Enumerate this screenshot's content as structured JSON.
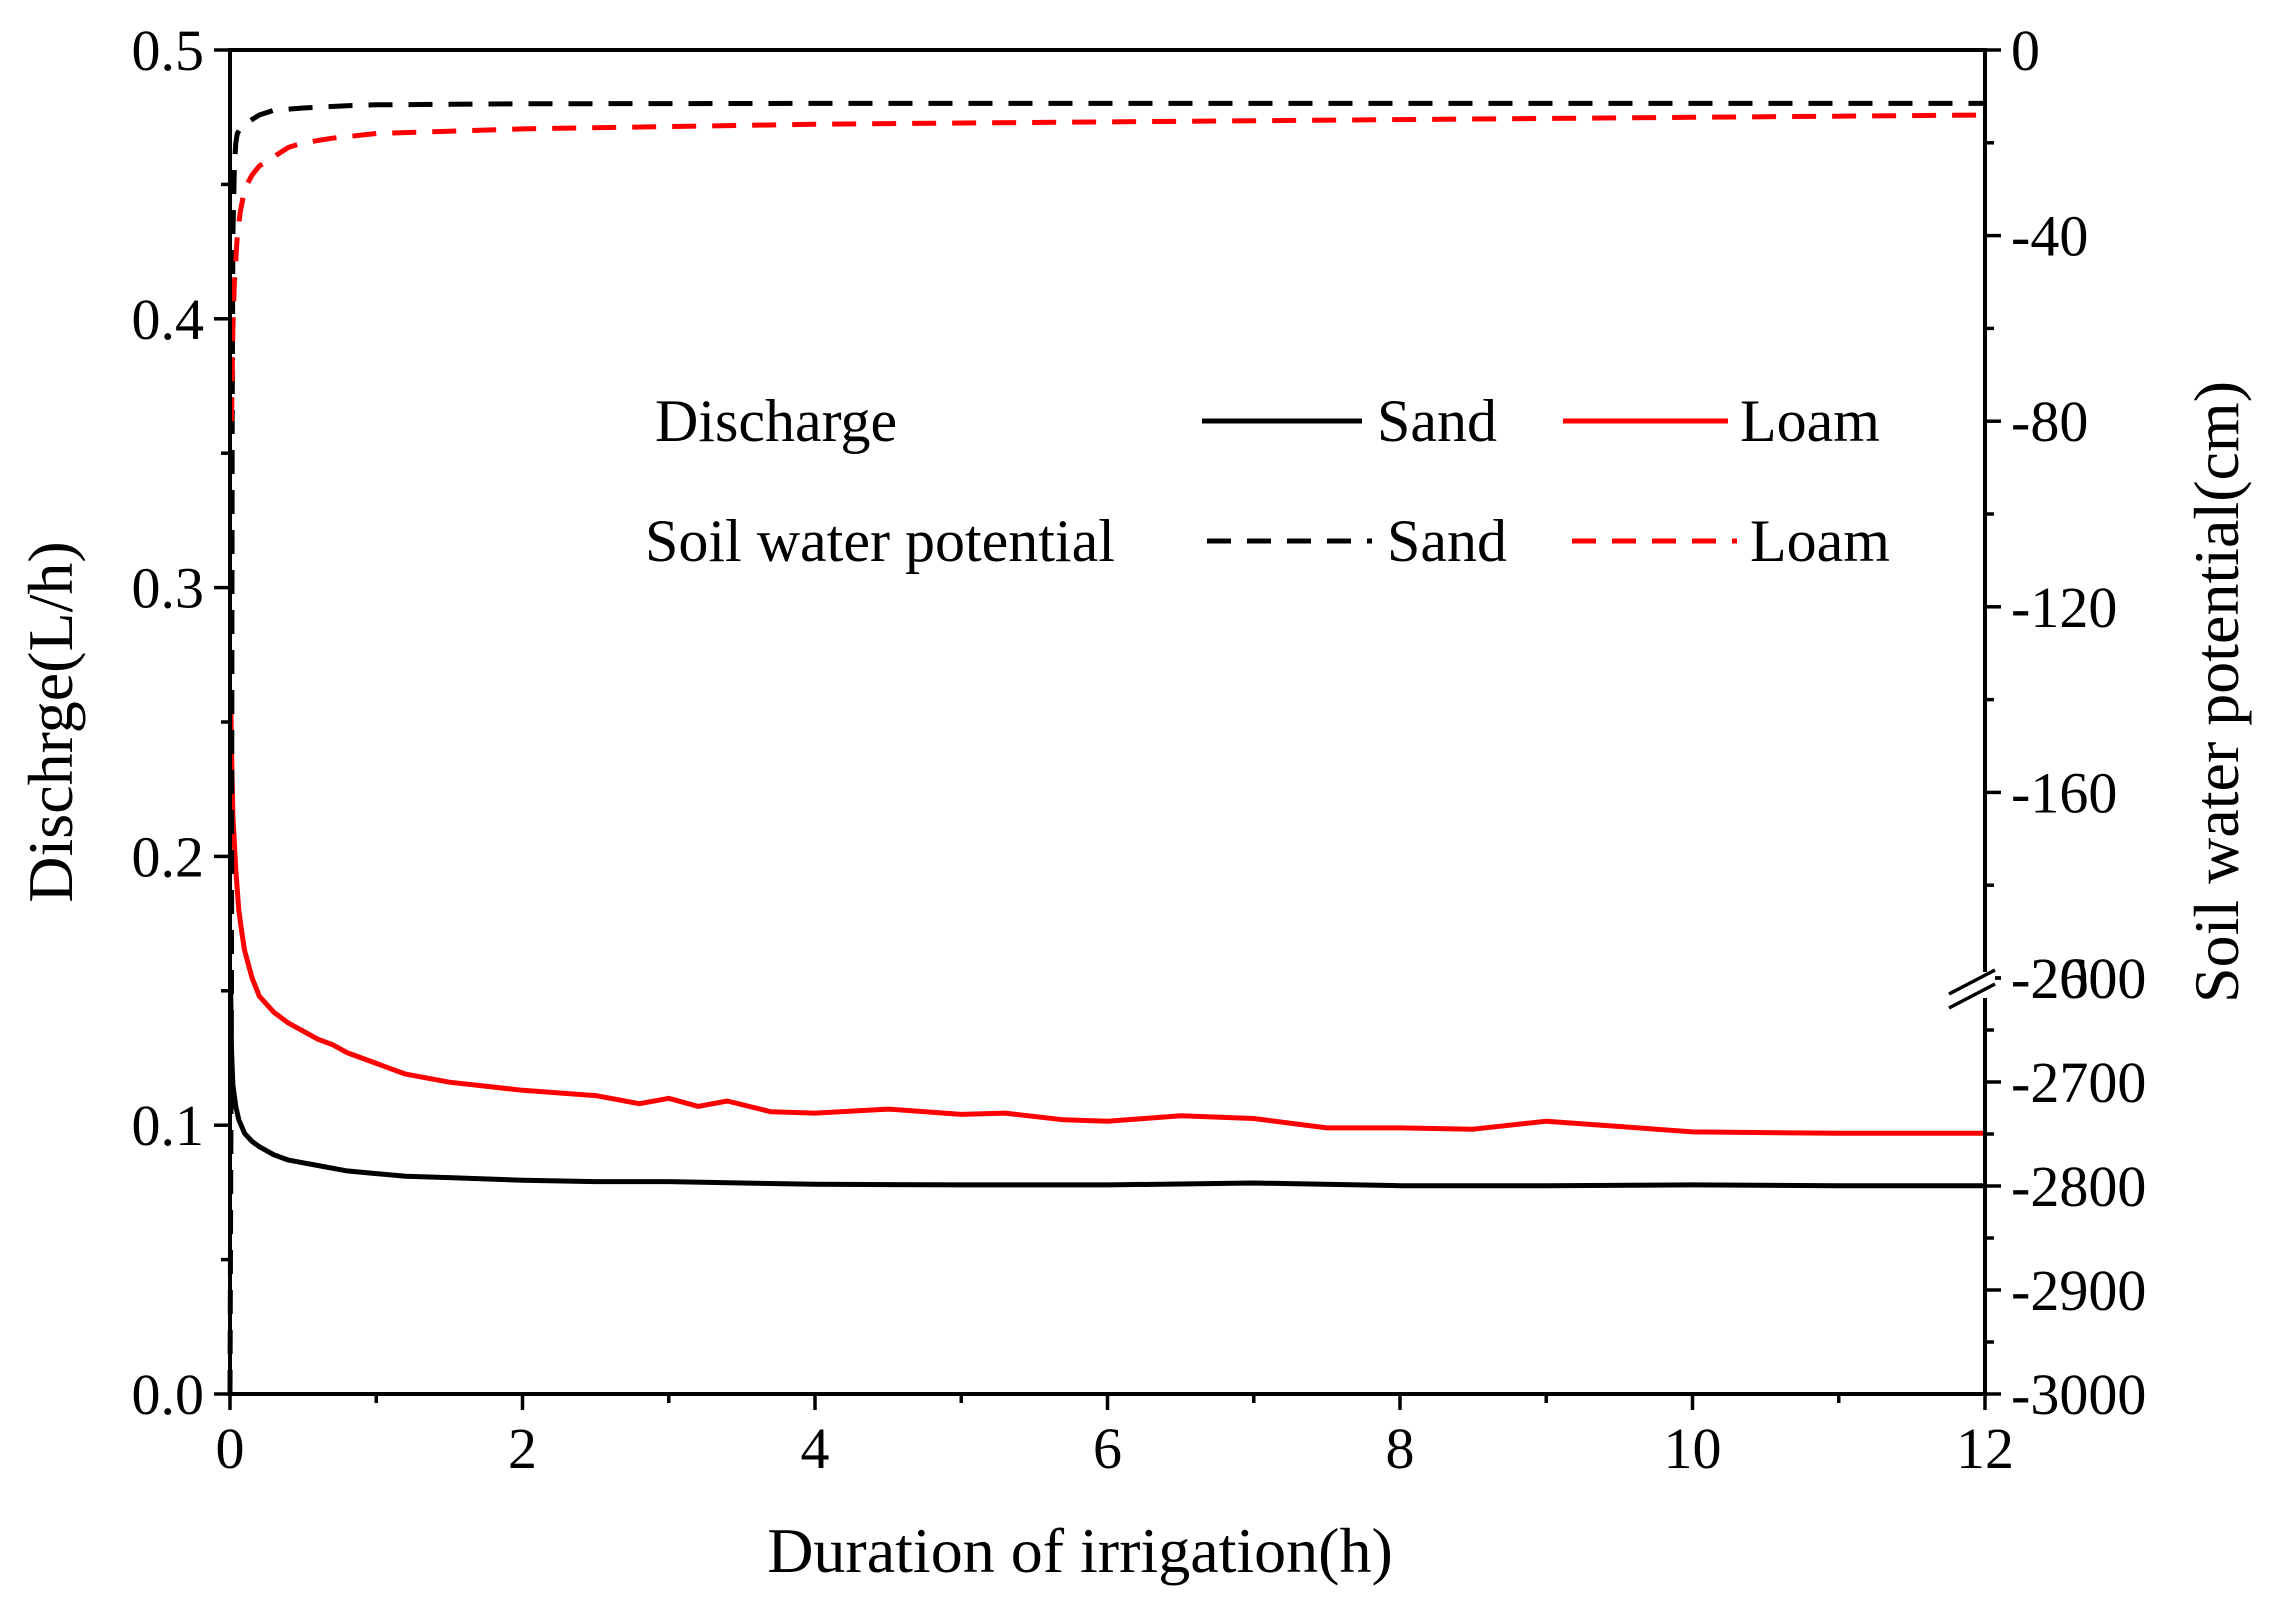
{
  "chart_data": {
    "type": "line",
    "title": "",
    "xlabel": "Duration of irrigation(h)",
    "ylabel": "Dischrge(L/h)",
    "y2label": "Soil water potential(cm)",
    "xlim": [
      0,
      12
    ],
    "ylim": [
      0,
      0.5
    ],
    "x_ticks": [
      "0",
      "2",
      "4",
      "6",
      "8",
      "10",
      "12"
    ],
    "y_ticks": [
      "0.0",
      "0.1",
      "0.2",
      "0.3",
      "0.4",
      "0.5"
    ],
    "y2_axis_break": true,
    "y2_upper": {
      "range": [
        -200,
        0
      ],
      "ticks": [
        "0",
        "-40",
        "-80",
        "-120",
        "-160",
        "-200"
      ]
    },
    "y2_lower": {
      "range": [
        -3000,
        -2600
      ],
      "ticks": [
        "-2600",
        "-2700",
        "-2800",
        "-2900",
        "-3000"
      ]
    },
    "legend": {
      "placement": "upper-center",
      "group_discharge": "Discharge",
      "group_potential": "Soil water potential",
      "sand": "Sand",
      "loam": "Loam"
    },
    "series": [
      {
        "name": "Sand",
        "kind": "Discharge",
        "axis": "left",
        "color": "#000000",
        "dash": "solid",
        "x": [
          0.005,
          0.01,
          0.02,
          0.04,
          0.06,
          0.1,
          0.15,
          0.2,
          0.3,
          0.4,
          0.5,
          0.6,
          0.8,
          1.0,
          1.2,
          1.5,
          2.0,
          2.5,
          3.0,
          3.5,
          4.0,
          5.0,
          6.0,
          7.0,
          8.0,
          9.0,
          10.0,
          11.0,
          12.0
        ],
        "values": [
          0.15,
          0.128,
          0.115,
          0.107,
          0.102,
          0.097,
          0.094,
          0.092,
          0.089,
          0.087,
          0.086,
          0.085,
          0.083,
          0.082,
          0.081,
          0.0805,
          0.0795,
          0.079,
          0.079,
          0.0785,
          0.078,
          0.0778,
          0.0778,
          0.0785,
          0.0775,
          0.0775,
          0.0778,
          0.0775,
          0.0775
        ]
      },
      {
        "name": "Loam",
        "kind": "Discharge",
        "axis": "left",
        "color": "#ff0000",
        "dash": "solid",
        "x": [
          0.005,
          0.01,
          0.02,
          0.04,
          0.06,
          0.08,
          0.1,
          0.15,
          0.2,
          0.3,
          0.4,
          0.5,
          0.6,
          0.7,
          0.8,
          1.0,
          1.2,
          1.5,
          2.0,
          2.5,
          2.8,
          3.0,
          3.2,
          3.4,
          3.7,
          4.0,
          4.5,
          5.0,
          5.3,
          5.7,
          6.0,
          6.5,
          7.0,
          7.5,
          8.0,
          8.5,
          9.0,
          9.5,
          10.0,
          11.0,
          12.0
        ],
        "values": [
          0.26,
          0.24,
          0.215,
          0.195,
          0.18,
          0.172,
          0.165,
          0.155,
          0.148,
          0.142,
          0.138,
          0.135,
          0.132,
          0.13,
          0.127,
          0.123,
          0.119,
          0.116,
          0.113,
          0.111,
          0.108,
          0.11,
          0.107,
          0.109,
          0.105,
          0.1045,
          0.106,
          0.104,
          0.1045,
          0.102,
          0.1015,
          0.1035,
          0.1025,
          0.099,
          0.099,
          0.0985,
          0.1015,
          0.0995,
          0.0975,
          0.097,
          0.097
        ]
      },
      {
        "name": "Sand",
        "kind": "Soil water potential",
        "axis": "right",
        "color": "#000000",
        "dash": "dashed",
        "x": [
          0,
          0.005,
          0.01,
          0.015,
          0.02,
          0.03,
          0.04,
          0.05,
          0.07,
          0.1,
          0.15,
          0.2,
          0.3,
          0.5,
          0.8,
          1.0,
          2.0,
          4.0,
          6.0,
          8.0,
          10.0,
          12.0
        ],
        "values": [
          -3000,
          -2800,
          -2600,
          -80,
          -40,
          -25,
          -20,
          -18,
          -17,
          -16,
          -15,
          -14,
          -13,
          -12.5,
          -12,
          -11.8,
          -11.6,
          -11.5,
          -11.5,
          -11.5,
          -11.5,
          -11.5
        ]
      },
      {
        "name": "Loam",
        "kind": "Soil water potential",
        "axis": "right",
        "color": "#ff0000",
        "dash": "dashed",
        "x": [
          0.01,
          0.02,
          0.03,
          0.05,
          0.07,
          0.1,
          0.15,
          0.2,
          0.3,
          0.4,
          0.5,
          0.7,
          1.0,
          1.5,
          2.0,
          3.0,
          4.0,
          6.0,
          8.0,
          10.0,
          12.0
        ],
        "values": [
          -80,
          -60,
          -50,
          -40,
          -35,
          -30,
          -27,
          -25,
          -23,
          -21,
          -20,
          -19,
          -18,
          -17.5,
          -17,
          -16.5,
          -16,
          -15.5,
          -15,
          -14.5,
          -14
        ]
      }
    ]
  }
}
